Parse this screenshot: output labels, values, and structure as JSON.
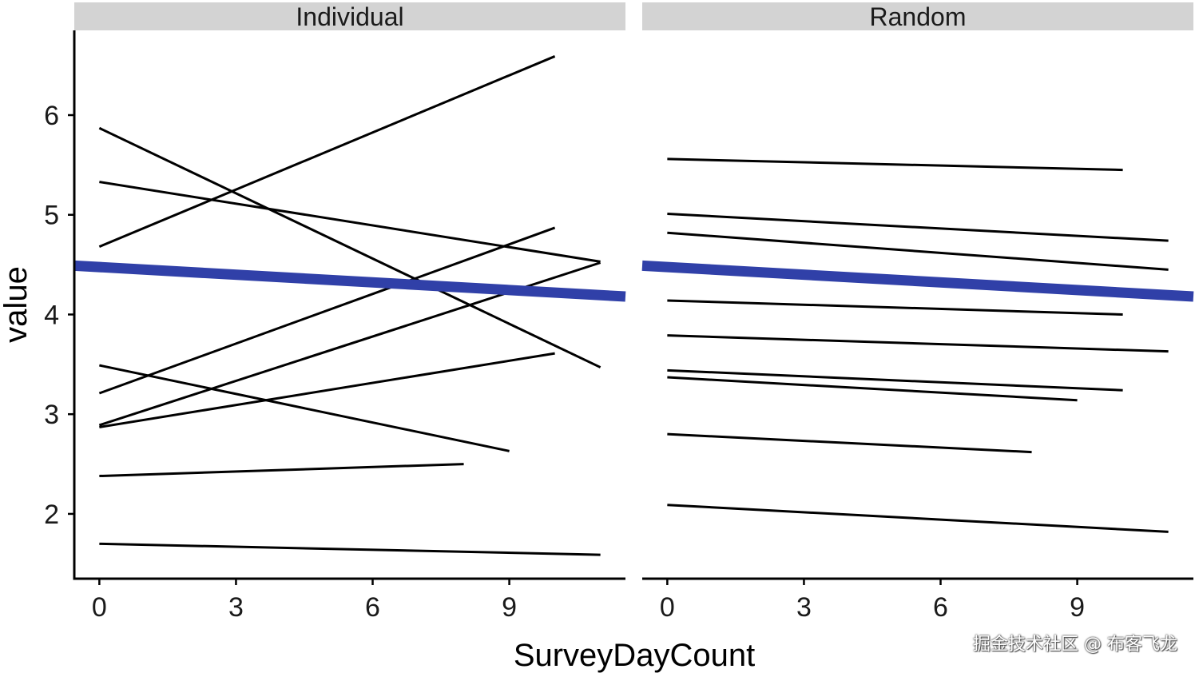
{
  "chart_data": {
    "type": "line",
    "xlabel": "SurveyDayCount",
    "ylabel": "value",
    "xlim": [
      -0.55,
      11.55
    ],
    "ylim": [
      1.35,
      6.85
    ],
    "x_ticks": [
      0,
      3,
      6,
      9
    ],
    "y_ticks": [
      2,
      3,
      4,
      5,
      6
    ],
    "fit_color": "#3040a8",
    "line_color": "#000000",
    "strip_color": "#d3d3d3",
    "panels": [
      {
        "title": "Individual",
        "fit_line": {
          "x": [
            -0.55,
            11.55
          ],
          "y": [
            4.49,
            4.18
          ]
        },
        "lines": [
          {
            "x": [
              0,
              11
            ],
            "y": [
              5.87,
              3.47
            ]
          },
          {
            "x": [
              0,
              11
            ],
            "y": [
              5.33,
              4.53
            ]
          },
          {
            "x": [
              0,
              10
            ],
            "y": [
              4.68,
              6.59
            ]
          },
          {
            "x": [
              0,
              10
            ],
            "y": [
              3.21,
              4.87
            ]
          },
          {
            "x": [
              0,
              11
            ],
            "y": [
              2.89,
              4.52
            ]
          },
          {
            "x": [
              0,
              10
            ],
            "y": [
              2.87,
              3.61
            ]
          },
          {
            "x": [
              0,
              9
            ],
            "y": [
              3.49,
              2.63
            ]
          },
          {
            "x": [
              0,
              8
            ],
            "y": [
              2.38,
              2.5
            ]
          },
          {
            "x": [
              0,
              11
            ],
            "y": [
              1.7,
              1.59
            ]
          }
        ]
      },
      {
        "title": "Random",
        "fit_line": {
          "x": [
            -0.55,
            11.55
          ],
          "y": [
            4.49,
            4.18
          ]
        },
        "lines": [
          {
            "x": [
              0,
              10
            ],
            "y": [
              5.56,
              5.45
            ]
          },
          {
            "x": [
              0,
              11
            ],
            "y": [
              5.01,
              4.74
            ]
          },
          {
            "x": [
              0,
              11
            ],
            "y": [
              4.82,
              4.45
            ]
          },
          {
            "x": [
              0,
              10
            ],
            "y": [
              4.14,
              4.0
            ]
          },
          {
            "x": [
              0,
              11
            ],
            "y": [
              3.79,
              3.63
            ]
          },
          {
            "x": [
              0,
              10
            ],
            "y": [
              3.44,
              3.24
            ]
          },
          {
            "x": [
              0,
              9
            ],
            "y": [
              3.37,
              3.14
            ]
          },
          {
            "x": [
              0,
              8
            ],
            "y": [
              2.8,
              2.62
            ]
          },
          {
            "x": [
              0,
              11
            ],
            "y": [
              2.09,
              1.82
            ]
          }
        ]
      }
    ]
  },
  "watermark": "掘金技术社区 @ 布客飞龙"
}
